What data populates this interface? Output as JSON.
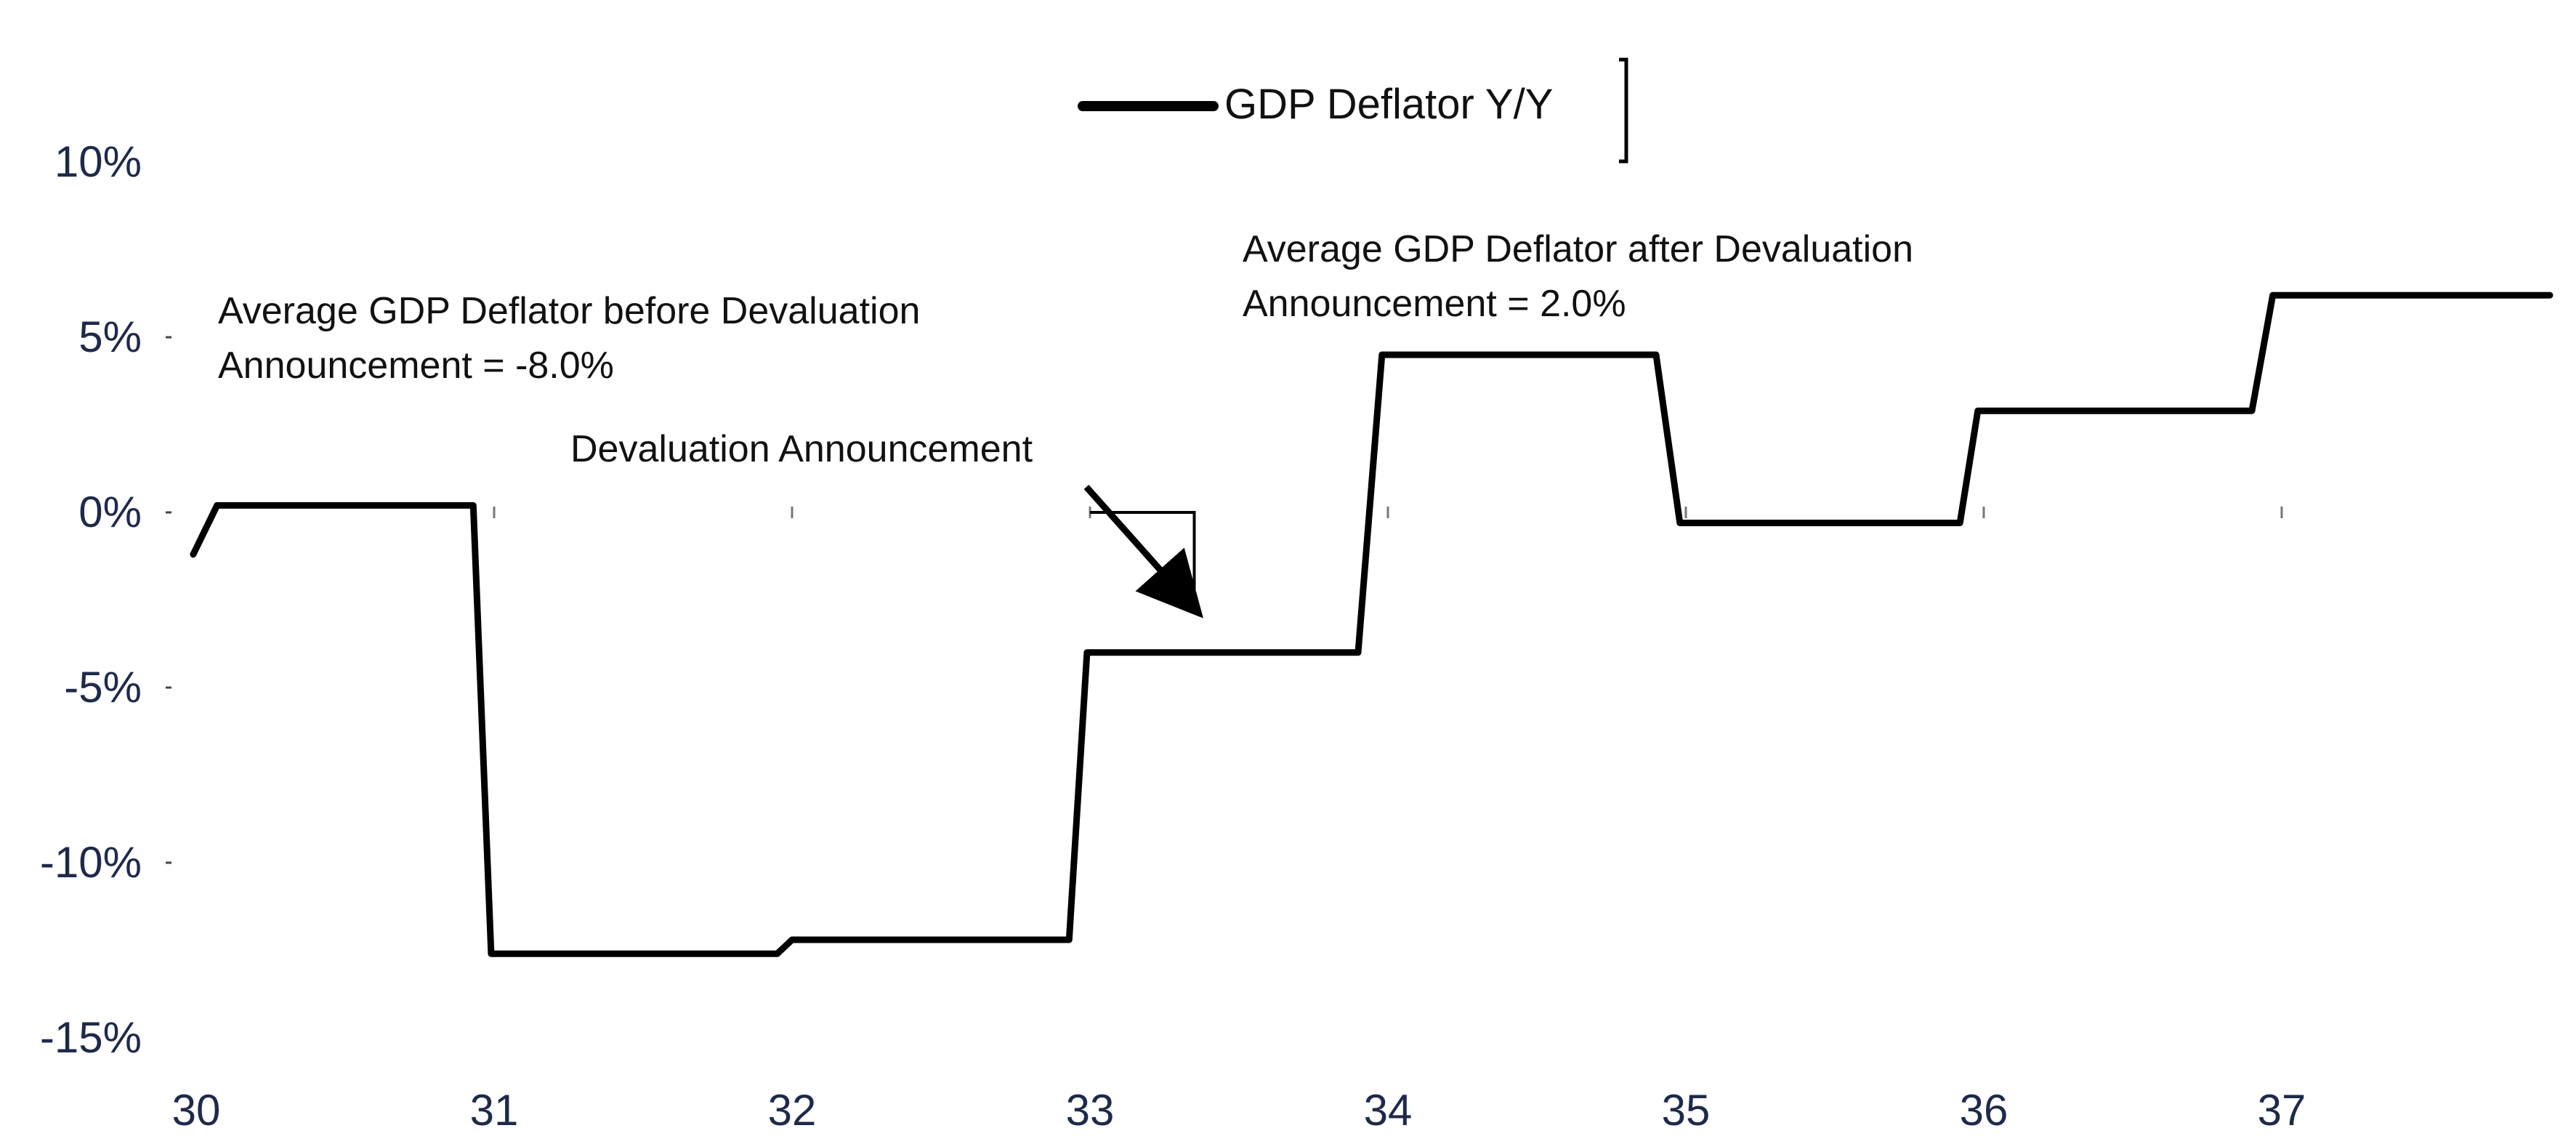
{
  "chart_data": {
    "type": "line",
    "title": "",
    "xlabel": "",
    "ylabel": "",
    "xlim": [
      30,
      37.9
    ],
    "ylim": [
      -15,
      10
    ],
    "x_ticks": [
      30,
      31,
      32,
      33,
      34,
      35,
      36,
      37
    ],
    "x_tick_labels": [
      "30",
      "31",
      "32",
      "33",
      "34",
      "35",
      "36",
      "37"
    ],
    "y_ticks": [
      10,
      5,
      0,
      -5,
      -10,
      -15
    ],
    "y_tick_labels": [
      "10%",
      "5%",
      "0%",
      "-5%",
      "-10%",
      "-15%"
    ],
    "grid": false,
    "legend_position": "top-center",
    "series": [
      {
        "name": "GDP Deflator Y/Y",
        "color": "#000000",
        "points": [
          [
            29.99,
            -1.2
          ],
          [
            30.07,
            0.2
          ],
          [
            30.93,
            0.2
          ],
          [
            30.99,
            -12.6
          ],
          [
            31.95,
            -12.6
          ],
          [
            32.0,
            -12.2
          ],
          [
            32.93,
            -12.2
          ],
          [
            32.99,
            -4.0
          ],
          [
            33.9,
            -4.0
          ],
          [
            33.98,
            4.5
          ],
          [
            34.9,
            4.5
          ],
          [
            34.98,
            -0.3
          ],
          [
            35.92,
            -0.3
          ],
          [
            35.98,
            2.9
          ],
          [
            36.9,
            2.9
          ],
          [
            36.97,
            6.2
          ],
          [
            37.9,
            6.2
          ]
        ]
      }
    ],
    "annotations": [
      {
        "id": "avg_before",
        "lines": [
          "Average GDP Deflator before Devaluation",
          "Announcement = -8.0%"
        ]
      },
      {
        "id": "avg_after",
        "lines": [
          "Average GDP Deflator after Devaluation",
          "Announcement = 2.0%"
        ]
      },
      {
        "id": "devaluation",
        "lines": [
          "Devaluation Announcement"
        ],
        "arrow_from": [
          33.0,
          0.0
        ],
        "arrow_to": [
          33.3,
          -2.5
        ]
      }
    ]
  }
}
